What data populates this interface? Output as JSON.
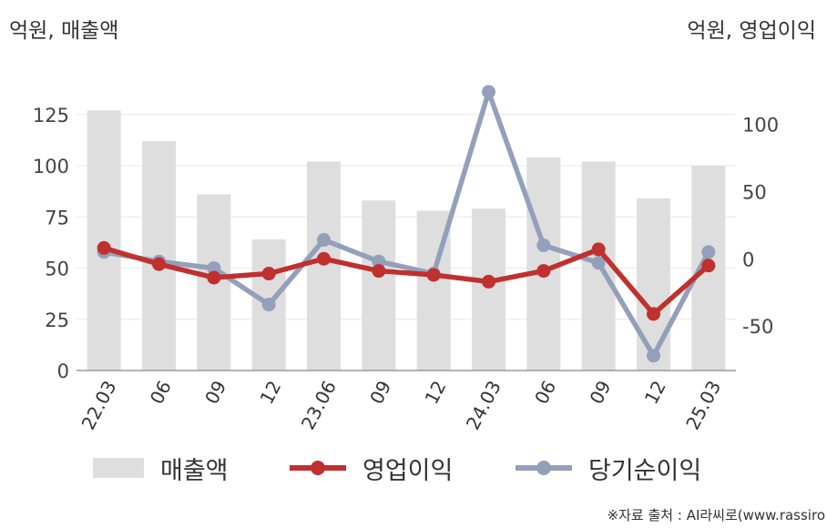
{
  "units": {
    "left": "억원, 매출액",
    "right": "억원, 영업이익"
  },
  "colors": {
    "revenue": "#dedede",
    "operating_profit": "#c0302e",
    "net_income": "#93a0bb"
  },
  "chart_data": {
    "type": "bar",
    "categories": [
      "22.03",
      "06",
      "09",
      "12",
      "23.06",
      "09",
      "12",
      "24.03",
      "06",
      "09",
      "12",
      "25.03"
    ],
    "left_axis": {
      "ylim": [
        0,
        140
      ],
      "ticks": [
        0,
        25,
        50,
        75,
        100,
        125
      ]
    },
    "right_axis": {
      "ylim": [
        -83,
        130
      ],
      "ticks": [
        -50,
        0,
        50,
        100
      ],
      "tick_labels": [
        "-50",
        "0",
        "50",
        "100"
      ]
    },
    "series": [
      {
        "name": "매출액",
        "type": "bar",
        "axis": "left",
        "values": [
          127,
          112,
          86,
          64,
          102,
          83,
          78,
          79,
          104,
          102,
          84,
          100
        ]
      },
      {
        "name": "영업이익",
        "type": "line",
        "axis": "right",
        "values": [
          8,
          -4,
          -14,
          -11,
          0,
          -9,
          -12,
          -17,
          -9,
          7,
          -41,
          -5
        ]
      },
      {
        "name": "당기순이익",
        "type": "line",
        "axis": "right",
        "values": [
          5,
          -2,
          -7,
          -34,
          14,
          -2,
          -11,
          124,
          10,
          -3,
          -72,
          5
        ]
      }
    ],
    "grid": true,
    "legend_position": "bottom"
  },
  "legend": {
    "revenue": "매출액",
    "operating_profit": "영업이익",
    "net_income": "당기순이익"
  },
  "source": "※자료 출처 : AI라씨로(www.rassiro"
}
